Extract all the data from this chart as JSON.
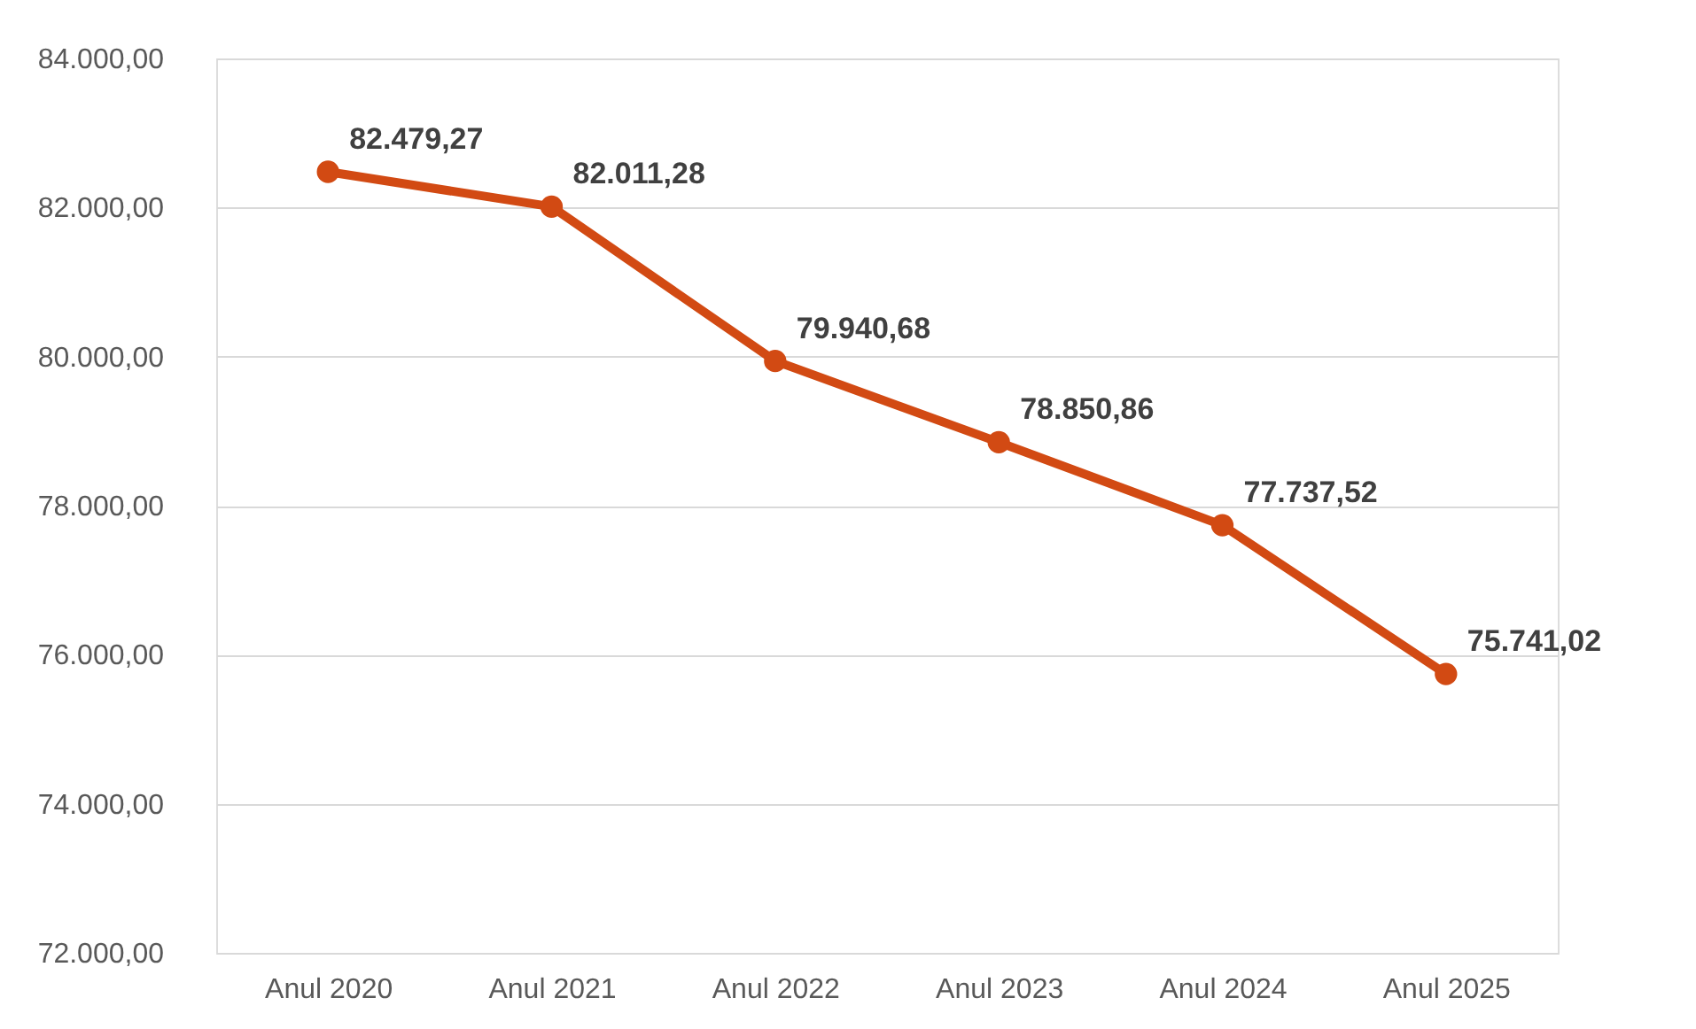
{
  "chart_data": {
    "type": "line",
    "categories": [
      "Anul 2020",
      "Anul 2021",
      "Anul 2022",
      "Anul 2023",
      "Anul 2024",
      "Anul 2025"
    ],
    "series": [
      {
        "color": "#d24a13",
        "values": [
          82479.27,
          82011.28,
          79940.68,
          78850.86,
          77737.52,
          75741.02
        ],
        "value_labels": [
          "82.479,27",
          "82.011,28",
          "79.940,68",
          "78.850,86",
          "77.737,52",
          "75.741,02"
        ]
      }
    ],
    "ylim": [
      72000,
      84000
    ],
    "yticks": [
      {
        "value": 72000,
        "label": "72.000,00"
      },
      {
        "value": 74000,
        "label": "74.000,00"
      },
      {
        "value": 76000,
        "label": "76.000,00"
      },
      {
        "value": 78000,
        "label": "78.000,00"
      },
      {
        "value": 80000,
        "label": "80.000,00"
      },
      {
        "value": 82000,
        "label": "82.000,00"
      },
      {
        "value": 84000,
        "label": "84.000,00"
      }
    ],
    "grid": "y",
    "marker": "circle",
    "line_style": "solid"
  }
}
